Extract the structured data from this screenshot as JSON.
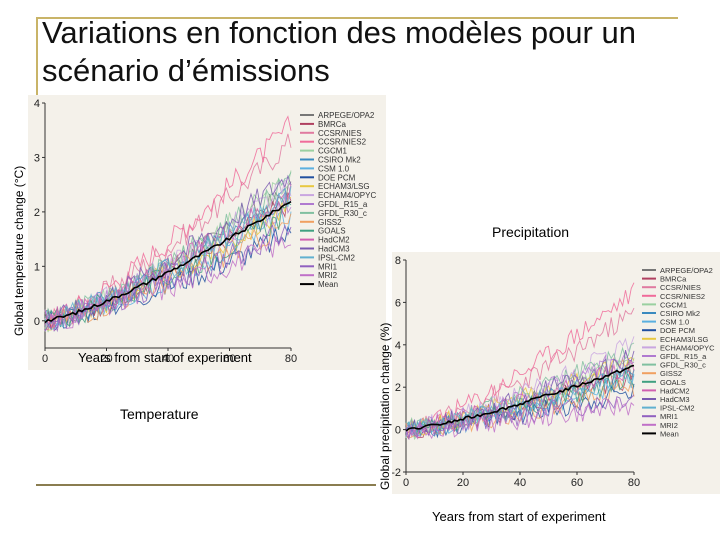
{
  "slide": {
    "title": "Variations en fonction des modèles pour un scénario d’émissions"
  },
  "chart_data": [
    {
      "type": "line",
      "name": "Temperature",
      "caption": "Temperature",
      "xlabel": "Years from start of experiment",
      "ylabel": "Global temperature change (°C)",
      "xlim": [
        0,
        80
      ],
      "ylim": [
        -0.5,
        4
      ],
      "xticks": [
        "0",
        "20",
        "40",
        "60",
        "80"
      ],
      "yticks": [
        "0",
        "1",
        "2",
        "3",
        "4"
      ],
      "legend": [
        "ARPEGE/OPA2",
        "BMRCa",
        "CCSR/NIES",
        "CCSR/NIES2",
        "CGCM1",
        "CSIRO Mk2",
        "CSM 1.0",
        "DOE PCM",
        "ECHAM3/LSG",
        "ECHAM4/OPYC",
        "GFDL_R15_a",
        "GFDL_R30_c",
        "GISS2",
        "GOALS",
        "HadCM2",
        "HadCM3",
        "IPSL-CM2",
        "MRI1",
        "MRI2",
        "Mean"
      ],
      "series_end_values": [
        2.4,
        2.2,
        3.3,
        3.6,
        2.6,
        2.3,
        1.9,
        1.6,
        2.1,
        2.5,
        2.2,
        2.6,
        1.8,
        2.0,
        2.4,
        2.7,
        2.3,
        1.7,
        1.5,
        2.2
      ],
      "colors": [
        "#777777",
        "#b04060",
        "#e07aa0",
        "#f06b9a",
        "#9ad0a0",
        "#3a8abf",
        "#5ab0e0",
        "#2050a0",
        "#e8c840",
        "#c9a6e0",
        "#b07ad0",
        "#80c0a0",
        "#f0a060",
        "#40a080",
        "#d060b0",
        "#7a5ab0",
        "#60b0d0",
        "#9060c0",
        "#c070c8",
        "#000000"
      ]
    },
    {
      "type": "line",
      "name": "Precipitation",
      "caption": "Precipitation",
      "xlabel": "Years from start of experiment",
      "ylabel": "Global precipitation change (%)",
      "xlim": [
        0,
        80
      ],
      "ylim": [
        -2,
        8
      ],
      "xticks": [
        "0",
        "20",
        "40",
        "60",
        "80"
      ],
      "yticks": [
        "-2",
        "0",
        "2",
        "4",
        "6",
        "8"
      ],
      "legend": [
        "ARPEGE/OPA2",
        "BMRCa",
        "CCSR/NIES",
        "CCSR/NIES2",
        "CGCM1",
        "CSIRO Mk2",
        "CSM 1.0",
        "DOE PCM",
        "ECHAM3/LSG",
        "ECHAM4/OPYC",
        "GFDL_R15_a",
        "GFDL_R30_c",
        "GISS2",
        "GOALS",
        "HadCM2",
        "HadCM3",
        "IPSL-CM2",
        "MRI1",
        "MRI2",
        "Mean"
      ],
      "series_end_values": [
        3.0,
        2.5,
        5.5,
        6.5,
        3.2,
        2.8,
        2.2,
        1.8,
        3.4,
        4.2,
        3.6,
        3.8,
        2.0,
        2.4,
        3.0,
        3.5,
        2.6,
        1.6,
        1.2,
        3.0
      ],
      "colors": [
        "#777777",
        "#b04060",
        "#e07aa0",
        "#f06b9a",
        "#9ad0a0",
        "#3a8abf",
        "#5ab0e0",
        "#2050a0",
        "#e8c840",
        "#c9a6e0",
        "#b07ad0",
        "#80c0a0",
        "#f0a060",
        "#40a080",
        "#d060b0",
        "#7a5ab0",
        "#60b0d0",
        "#9060c0",
        "#c070c8",
        "#000000"
      ]
    }
  ]
}
